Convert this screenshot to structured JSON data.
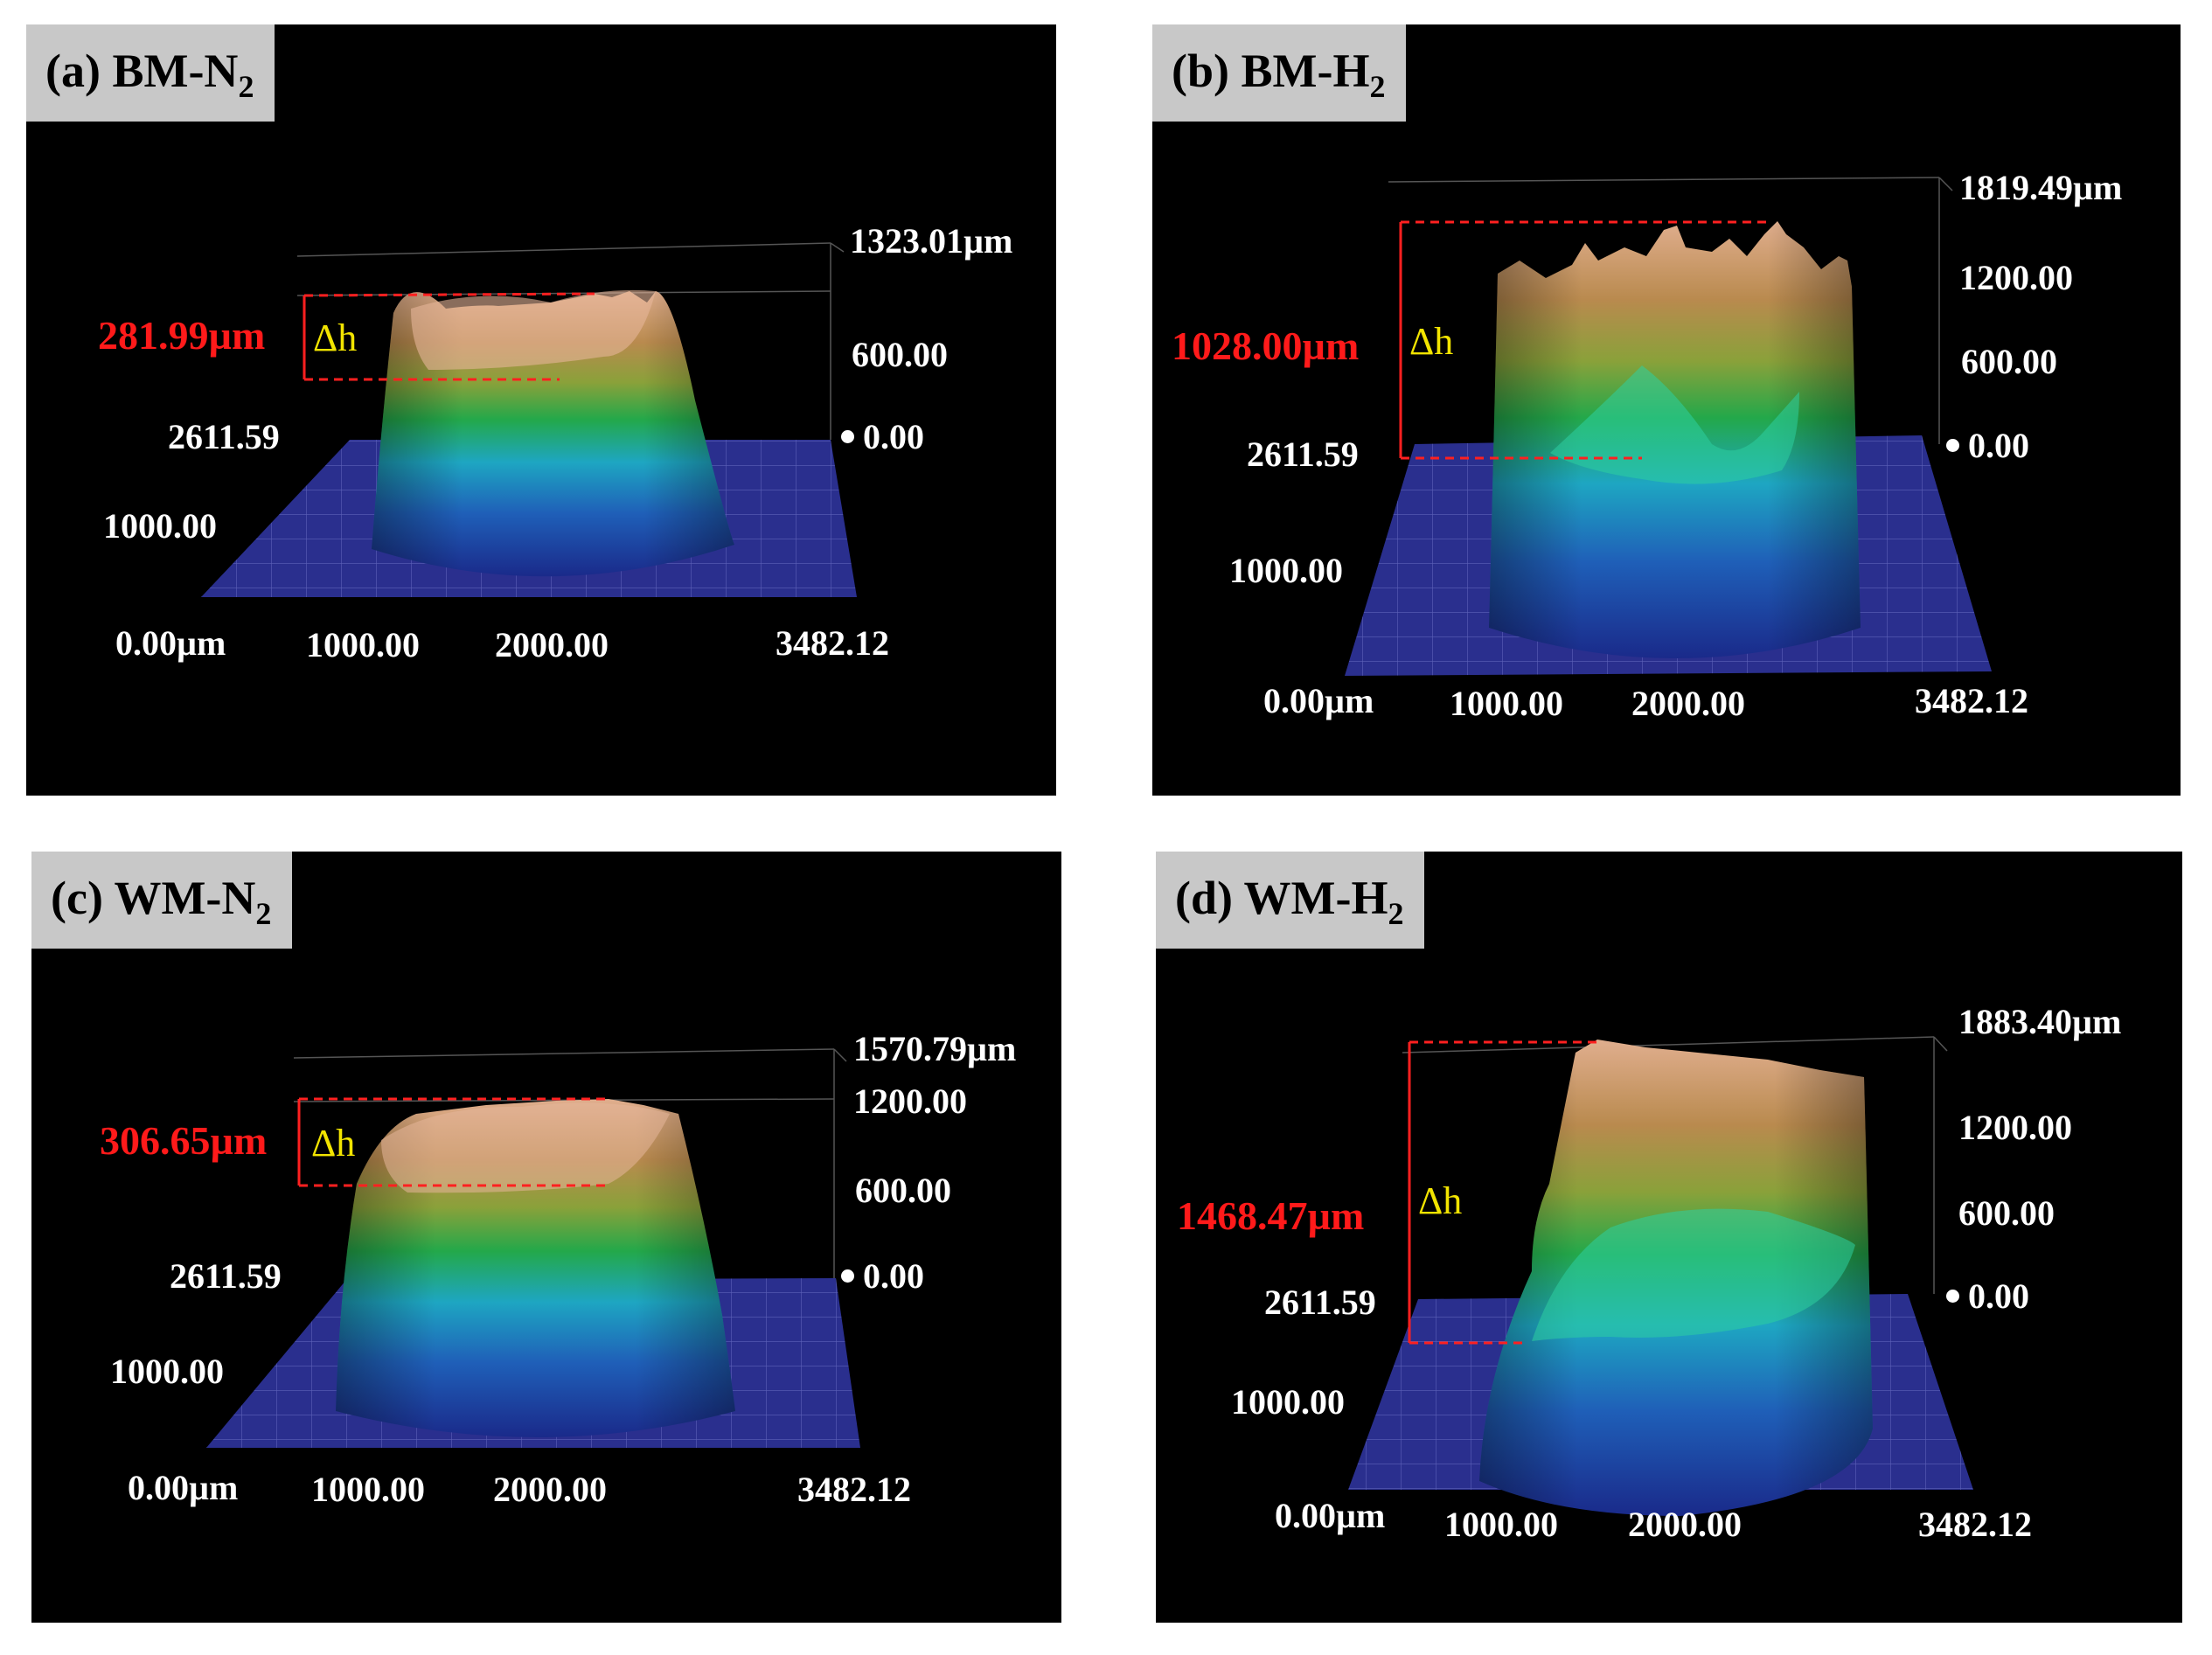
{
  "panels": [
    {
      "id": "a",
      "tag_text": "(a) BM-N",
      "tag_sub": "2",
      "z_max": "1323.01µm",
      "z_mid": "600.00",
      "z_zero": "0.00",
      "y_max": "2611.59",
      "y_mid": "1000.00",
      "x_origin": "0.00µm",
      "x_1": "1000.00",
      "x_2": "2000.00",
      "x_max": "3482.12",
      "delta_value": "281.99µm",
      "delta_symbol": "Δh"
    },
    {
      "id": "b",
      "tag_text": "(b) BM-H",
      "tag_sub": "2",
      "z_max": "1819.49µm",
      "z_hi": "1200.00",
      "z_mid": "600.00",
      "z_zero": "0.00",
      "y_max": "2611.59",
      "y_mid": "1000.00",
      "x_origin": "0.00µm",
      "x_1": "1000.00",
      "x_2": "2000.00",
      "x_max": "3482.12",
      "delta_value": "1028.00µm",
      "delta_symbol": "Δh"
    },
    {
      "id": "c",
      "tag_text": "(c) WM-N",
      "tag_sub": "2",
      "z_max": "1570.79µm",
      "z_hi": "1200.00",
      "z_mid": "600.00",
      "z_zero": "0.00",
      "y_max": "2611.59",
      "y_mid": "1000.00",
      "x_origin": "0.00µm",
      "x_1": "1000.00",
      "x_2": "2000.00",
      "x_max": "3482.12",
      "delta_value": "306.65µm",
      "delta_symbol": "Δh"
    },
    {
      "id": "d",
      "tag_text": "(d) WM-H",
      "tag_sub": "2",
      "z_max": "1883.40µm",
      "z_hi": "1200.00",
      "z_mid": "600.00",
      "z_zero": "0.00",
      "y_max": "2611.59",
      "y_mid": "1000.00",
      "x_origin": "0.00µm",
      "x_1": "1000.00",
      "x_2": "2000.00",
      "x_max": "3482.12",
      "delta_value": "1468.47µm",
      "delta_symbol": "Δh"
    }
  ],
  "colors": {
    "background": "#000000",
    "tag_bg": "#c8c8c8",
    "delta_value": "#ff1a1a",
    "delta_symbol": "#f2e400",
    "base_plane": "#2a2f8e",
    "axis_text": "#ffffff"
  }
}
